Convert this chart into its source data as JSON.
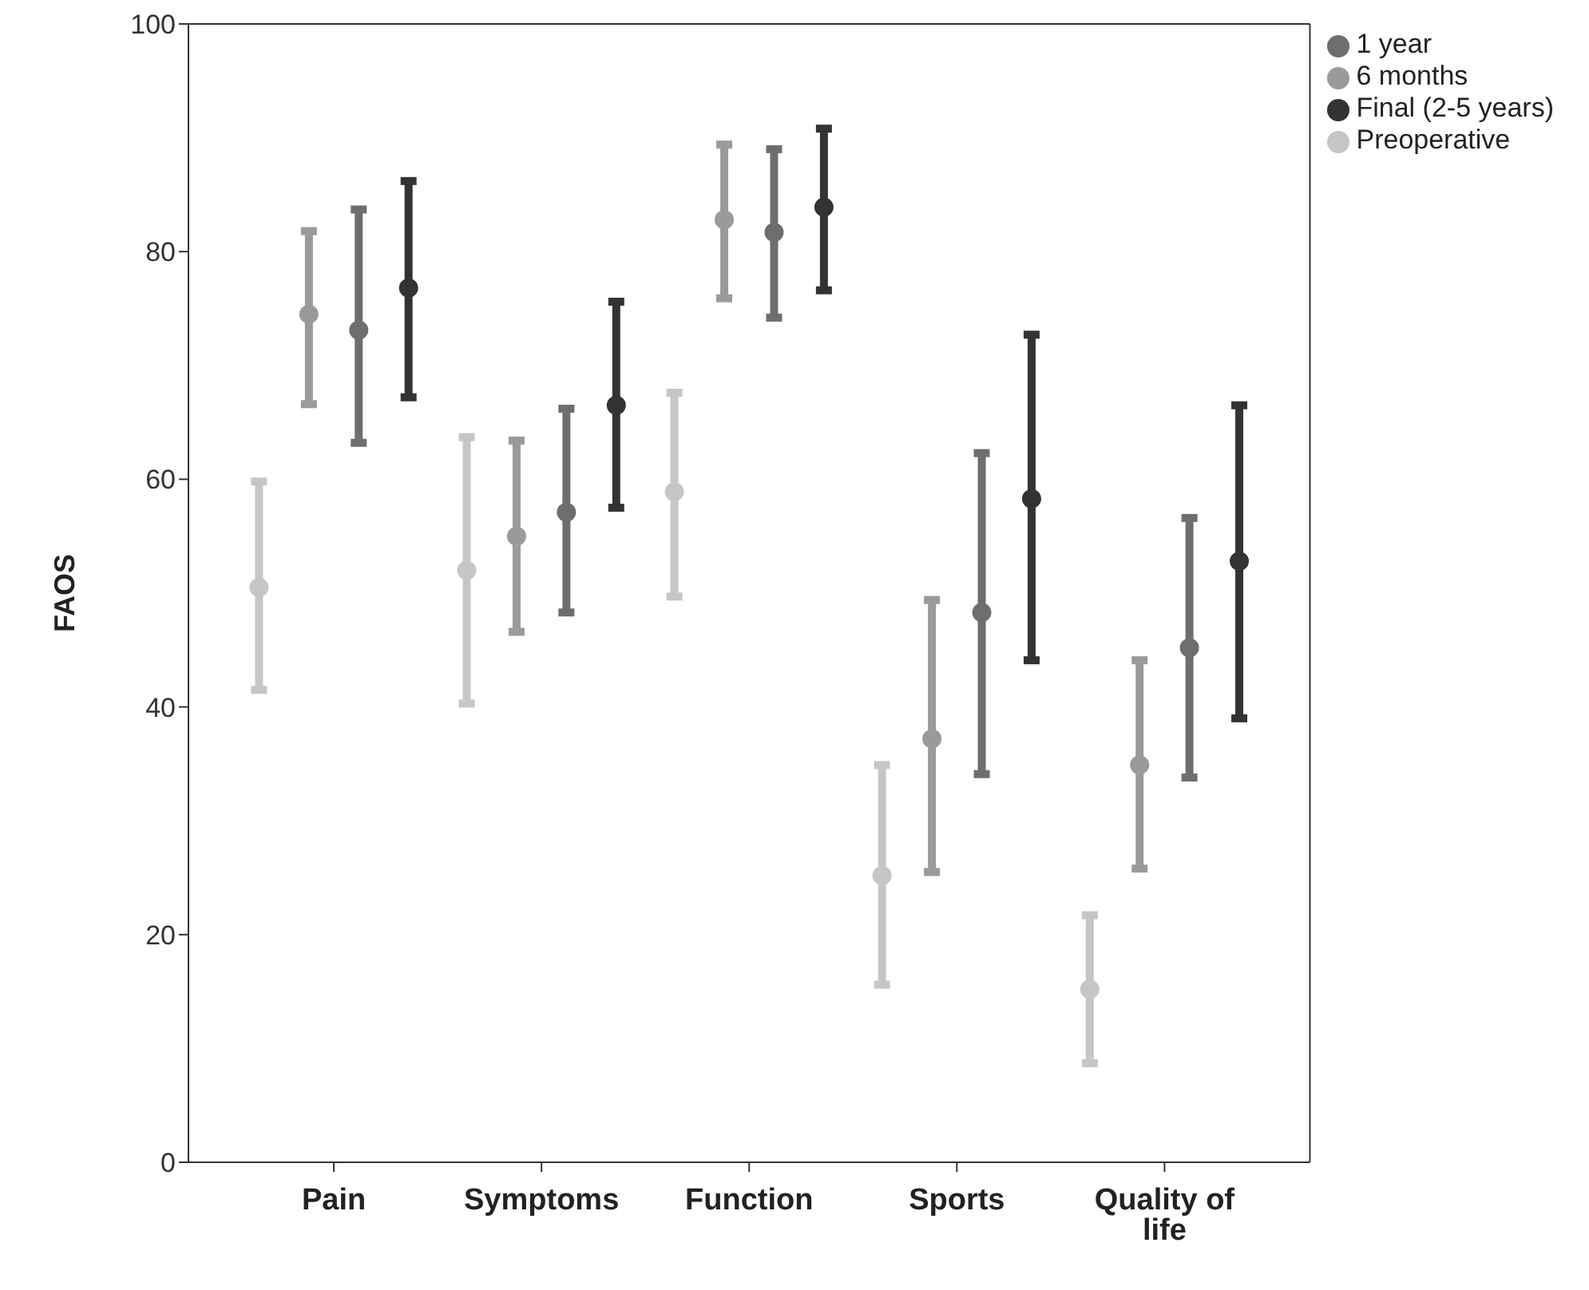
{
  "chart_data": {
    "type": "scatter",
    "ylabel": "FAOS",
    "categories": [
      "Pain",
      "Symptoms",
      "Function",
      "Sports",
      "Quality of life"
    ],
    "ylim": [
      0,
      100
    ],
    "yticks": [
      0,
      20,
      40,
      60,
      80,
      100
    ],
    "grid": false,
    "legend": "top right",
    "marker": "circle",
    "series": [
      {
        "name": "Preoperative",
        "color": "#c6c6c6",
        "values": [
          50.5,
          52,
          58.9,
          25.2,
          15.2
        ],
        "errors": [
          [
            41.5,
            59.8
          ],
          [
            40.3,
            63.7
          ],
          [
            49.7,
            67.6
          ],
          [
            15.6,
            34.9
          ],
          [
            8.7,
            21.7
          ]
        ]
      },
      {
        "name": "6 months",
        "color": "#9a9a9a",
        "values": [
          74.5,
          55,
          82.8,
          37.2,
          34.9
        ],
        "errors": [
          [
            66.6,
            81.8
          ],
          [
            46.6,
            63.4
          ],
          [
            75.9,
            89.4
          ],
          [
            25.5,
            49.4
          ],
          [
            25.8,
            44.1
          ]
        ]
      },
      {
        "name": "1 year",
        "color": "#6e6e6e",
        "values": [
          73.1,
          57.1,
          81.7,
          48.3,
          45.2
        ],
        "errors": [
          [
            63.2,
            83.7
          ],
          [
            48.3,
            66.2
          ],
          [
            74.2,
            89
          ],
          [
            34.1,
            62.3
          ],
          [
            33.8,
            56.6
          ]
        ]
      },
      {
        "name": "Final (2-5 years)",
        "color": "#333333",
        "values": [
          76.8,
          66.5,
          83.9,
          58.3,
          52.8
        ],
        "errors": [
          [
            67.2,
            86.2
          ],
          [
            57.5,
            75.6
          ],
          [
            76.6,
            90.8
          ],
          [
            44.1,
            72.7
          ],
          [
            39,
            66.5
          ]
        ]
      }
    ]
  }
}
